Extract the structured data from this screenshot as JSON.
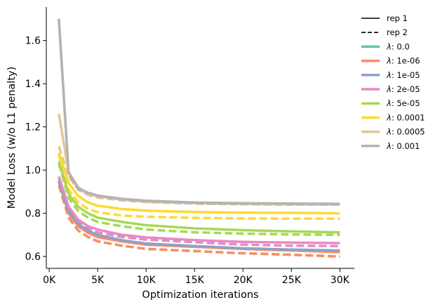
{
  "chart_data": {
    "type": "line",
    "xlabel": "Optimization iterations",
    "ylabel": "Model Loss (w/o L1 penalty)",
    "xlim": [
      -300,
      31500
    ],
    "ylim": [
      0.545,
      1.755
    ],
    "x_ticks": [
      0,
      5000,
      10000,
      15000,
      20000,
      25000,
      30000
    ],
    "x_tick_labels": [
      "0K",
      "5K",
      "10K",
      "15K",
      "20K",
      "25K",
      "30K"
    ],
    "y_ticks": [
      0.6,
      0.8,
      1.0,
      1.2,
      1.4,
      1.6
    ],
    "y_tick_labels": [
      "0.6",
      "0.8",
      "1.0",
      "1.2",
      "1.4",
      "1.6"
    ],
    "grid": false,
    "legend_placement": "upper-right-outside",
    "legend_styles": [
      {
        "label": "rep 1",
        "dash": "solid"
      },
      {
        "label": "rep 2",
        "dash": "dashed"
      }
    ],
    "lambda_prefix": "λ",
    "x": [
      1000,
      2000,
      3000,
      4000,
      5000,
      7500,
      10000,
      15000,
      20000,
      25000,
      30000
    ],
    "series": [
      {
        "lambda": "0.0",
        "color": "#66c2a5",
        "rep1": [
          0.95,
          0.8,
          0.74,
          0.71,
          0.69,
          0.67,
          0.655,
          0.645,
          0.635,
          0.628,
          0.62
        ],
        "rep2": [
          0.93,
          0.78,
          0.72,
          0.69,
          0.67,
          0.65,
          0.635,
          0.625,
          0.615,
          0.608,
          0.6
        ]
      },
      {
        "lambda": "1e-06",
        "color": "#fc8d62",
        "rep1": [
          0.95,
          0.8,
          0.74,
          0.71,
          0.69,
          0.67,
          0.655,
          0.645,
          0.635,
          0.628,
          0.62
        ],
        "rep2": [
          0.93,
          0.78,
          0.72,
          0.69,
          0.67,
          0.65,
          0.635,
          0.625,
          0.615,
          0.608,
          0.6
        ]
      },
      {
        "lambda": "1e-05",
        "color": "#8da0cb",
        "rep1": [
          0.95,
          0.81,
          0.75,
          0.72,
          0.7,
          0.675,
          0.66,
          0.648,
          0.638,
          0.632,
          0.628
        ],
        "rep2": [
          0.945,
          0.8,
          0.74,
          0.715,
          0.695,
          0.67,
          0.655,
          0.645,
          0.635,
          0.628,
          0.625
        ]
      },
      {
        "lambda": "2e-05",
        "color": "#e78ac3",
        "rep1": [
          0.97,
          0.83,
          0.77,
          0.74,
          0.725,
          0.7,
          0.688,
          0.676,
          0.668,
          0.664,
          0.662
        ],
        "rep2": [
          0.96,
          0.82,
          0.76,
          0.73,
          0.712,
          0.69,
          0.678,
          0.666,
          0.655,
          0.65,
          0.648
        ]
      },
      {
        "lambda": "5e-05",
        "color": "#a6d854",
        "rep1": [
          1.04,
          0.89,
          0.83,
          0.8,
          0.78,
          0.76,
          0.745,
          0.73,
          0.722,
          0.716,
          0.712
        ],
        "rep2": [
          1.03,
          0.87,
          0.81,
          0.78,
          0.76,
          0.74,
          0.725,
          0.712,
          0.706,
          0.702,
          0.7
        ]
      },
      {
        "lambda": "0.0001",
        "color": "#ffd92f",
        "rep1": [
          1.08,
          0.94,
          0.88,
          0.85,
          0.835,
          0.82,
          0.812,
          0.806,
          0.803,
          0.802,
          0.8
        ],
        "rep2": [
          1.07,
          0.91,
          0.85,
          0.82,
          0.805,
          0.79,
          0.784,
          0.779,
          0.776,
          0.775,
          0.775
        ]
      },
      {
        "lambda": "0.0005",
        "color": "#e5c494",
        "rep1": [
          1.26,
          0.99,
          0.92,
          0.89,
          0.88,
          0.865,
          0.855,
          0.848,
          0.845,
          0.843,
          0.842
        ],
        "rep2": [
          1.11,
          0.97,
          0.91,
          0.885,
          0.873,
          0.86,
          0.852,
          0.845,
          0.842,
          0.84,
          0.84
        ]
      },
      {
        "lambda": "0.001",
        "color": "#b3b3b3",
        "rep1": [
          1.7,
          0.99,
          0.915,
          0.895,
          0.882,
          0.867,
          0.858,
          0.85,
          0.847,
          0.845,
          0.844
        ],
        "rep2": [
          1.7,
          0.98,
          0.91,
          0.89,
          0.878,
          0.863,
          0.854,
          0.846,
          0.843,
          0.841,
          0.84
        ]
      }
    ]
  }
}
